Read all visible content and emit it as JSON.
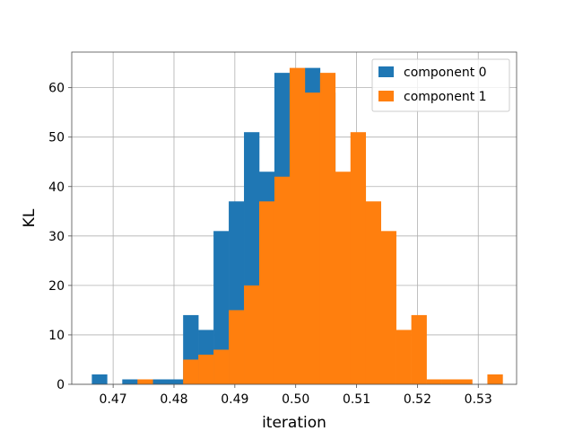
{
  "chart_data": {
    "type": "bar",
    "xlabel": "iteration",
    "ylabel": "KL",
    "xlim": [
      0.4632,
      0.5363
    ],
    "ylim": [
      0,
      67.2
    ],
    "xticks": [
      0.47,
      0.48,
      0.49,
      0.5,
      0.51,
      0.52,
      0.53
    ],
    "xtick_labels": [
      "0.47",
      "0.48",
      "0.49",
      "0.50",
      "0.51",
      "0.52",
      "0.53"
    ],
    "yticks": [
      0,
      10,
      20,
      30,
      40,
      50,
      60
    ],
    "ytick_labels": [
      "0",
      "10",
      "20",
      "30",
      "40",
      "50",
      "60"
    ],
    "grid": true,
    "legend_position": "top-right",
    "series": [
      {
        "name": "component 0",
        "color": "#1f77b4",
        "bins": [
          [
            0.4665,
            0.469,
            2
          ],
          [
            0.469,
            0.4715,
            0
          ],
          [
            0.4715,
            0.474,
            1
          ],
          [
            0.474,
            0.4765,
            1
          ],
          [
            0.4765,
            0.479,
            1
          ],
          [
            0.479,
            0.4815,
            1
          ],
          [
            0.4815,
            0.484,
            14
          ],
          [
            0.484,
            0.4865,
            11
          ],
          [
            0.4865,
            0.489,
            31
          ],
          [
            0.489,
            0.4915,
            37
          ],
          [
            0.4915,
            0.494,
            51
          ],
          [
            0.494,
            0.4965,
            43
          ],
          [
            0.4965,
            0.499,
            63
          ],
          [
            0.499,
            0.5015,
            59
          ],
          [
            0.5015,
            0.504,
            64
          ],
          [
            0.504,
            0.5065,
            59
          ],
          [
            0.5065,
            0.509,
            40
          ],
          [
            0.509,
            0.5115,
            40
          ],
          [
            0.5115,
            0.514,
            0
          ]
        ]
      },
      {
        "name": "component 1",
        "color": "#ff7f0e",
        "bins": [
          [
            0.474,
            0.4765,
            1
          ],
          [
            0.4765,
            0.479,
            0
          ],
          [
            0.479,
            0.4815,
            0
          ],
          [
            0.4815,
            0.484,
            5
          ],
          [
            0.484,
            0.4865,
            6
          ],
          [
            0.4865,
            0.489,
            7
          ],
          [
            0.489,
            0.4915,
            15
          ],
          [
            0.4915,
            0.494,
            20
          ],
          [
            0.494,
            0.4965,
            37
          ],
          [
            0.4965,
            0.499,
            42
          ],
          [
            0.499,
            0.5015,
            64
          ],
          [
            0.5015,
            0.504,
            59
          ],
          [
            0.504,
            0.5065,
            63
          ],
          [
            0.5065,
            0.509,
            43
          ],
          [
            0.509,
            0.5115,
            51
          ],
          [
            0.5115,
            0.514,
            37
          ],
          [
            0.514,
            0.5165,
            31
          ],
          [
            0.5165,
            0.519,
            11
          ],
          [
            0.519,
            0.5215,
            14
          ],
          [
            0.5215,
            0.524,
            1
          ],
          [
            0.524,
            0.5265,
            1
          ],
          [
            0.5265,
            0.529,
            1
          ],
          [
            0.529,
            0.5315,
            0
          ],
          [
            0.5315,
            0.534,
            2
          ]
        ]
      }
    ]
  }
}
